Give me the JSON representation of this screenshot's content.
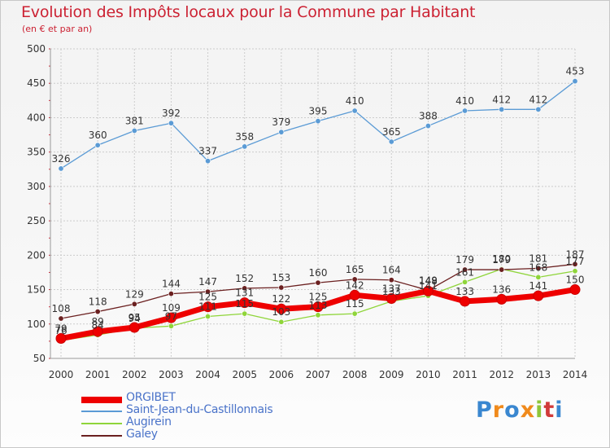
{
  "header": {
    "title": "Evolution des Impôts locaux pour la Commune par Habitant",
    "subtitle": "(en € et par an)"
  },
  "colors": {
    "title": "#cc2233",
    "axis_text": "#333333",
    "grid": "#cccccc",
    "legend_text": "#4a73c9"
  },
  "chart_data": {
    "type": "line",
    "x": [
      "2000",
      "2001",
      "2002",
      "2003",
      "2004",
      "2005",
      "2006",
      "2007",
      "2008",
      "2009",
      "2010",
      "2011",
      "2012",
      "2013",
      "2014"
    ],
    "ylim": [
      50,
      500
    ],
    "yticks": [
      50,
      100,
      150,
      200,
      250,
      300,
      350,
      400,
      450,
      500
    ],
    "grid": "horizontal, dashed",
    "legend_position": "bottom-left",
    "series": [
      {
        "name": "Saint-Jean-du-Castillonnais",
        "color": "#5b9bd5",
        "values": [
          326,
          360,
          381,
          392,
          337,
          358,
          379,
          395,
          410,
          365,
          388,
          410,
          412,
          412,
          453
        ],
        "labels": [
          "326",
          "360",
          "381",
          "392",
          "337",
          "358",
          "379",
          "395",
          "410",
          "365",
          "388",
          "410",
          "412",
          "412",
          "453"
        ]
      },
      {
        "name": "Augirein",
        "color": "#8fd53a",
        "values": [
          76,
          84,
          94,
          97,
          111,
          115,
          103,
          113,
          115,
          133,
          141,
          161,
          180,
          168,
          177
        ],
        "labels": [
          "76",
          "84",
          "94",
          "97",
          "111",
          "115",
          "103",
          "113",
          "115",
          "133",
          "141",
          "161",
          "180",
          "168",
          "177"
        ]
      },
      {
        "name": "Galey",
        "color": "#6b2020",
        "values": [
          108,
          118,
          129,
          144,
          147,
          152,
          153,
          160,
          165,
          164,
          149,
          179,
          179,
          181,
          187
        ],
        "labels": [
          "108",
          "118",
          "129",
          "144",
          "147",
          "152",
          "153",
          "160",
          "165",
          "164",
          "149",
          "179",
          "179",
          "181",
          "187"
        ]
      },
      {
        "name": "ORGIBET",
        "color": "#ee0000",
        "values": [
          79,
          89,
          95,
          109,
          125,
          131,
          122,
          125,
          142,
          137,
          148,
          133,
          136,
          141,
          150
        ],
        "labels": [
          "79",
          "89",
          "95",
          "109",
          "125",
          "131",
          "122",
          "125",
          "142",
          "137",
          "148",
          "133",
          "136",
          "141",
          "150"
        ]
      }
    ]
  },
  "legend": {
    "items": [
      {
        "label": "ORGIBET",
        "color": "#ee0000"
      },
      {
        "label": "Saint-Jean-du-Castillonnais",
        "color": "#5b9bd5"
      },
      {
        "label": "Augirein",
        "color": "#8fd53a"
      },
      {
        "label": "Galey",
        "color": "#6b2020"
      }
    ]
  },
  "logo": {
    "text": "Proxiti",
    "letter_colors": [
      "#3a87d0",
      "#f08a1c",
      "#3a87d0",
      "#f08a1c",
      "#8fc63a",
      "#d13a3a",
      "#3a87d0"
    ]
  }
}
